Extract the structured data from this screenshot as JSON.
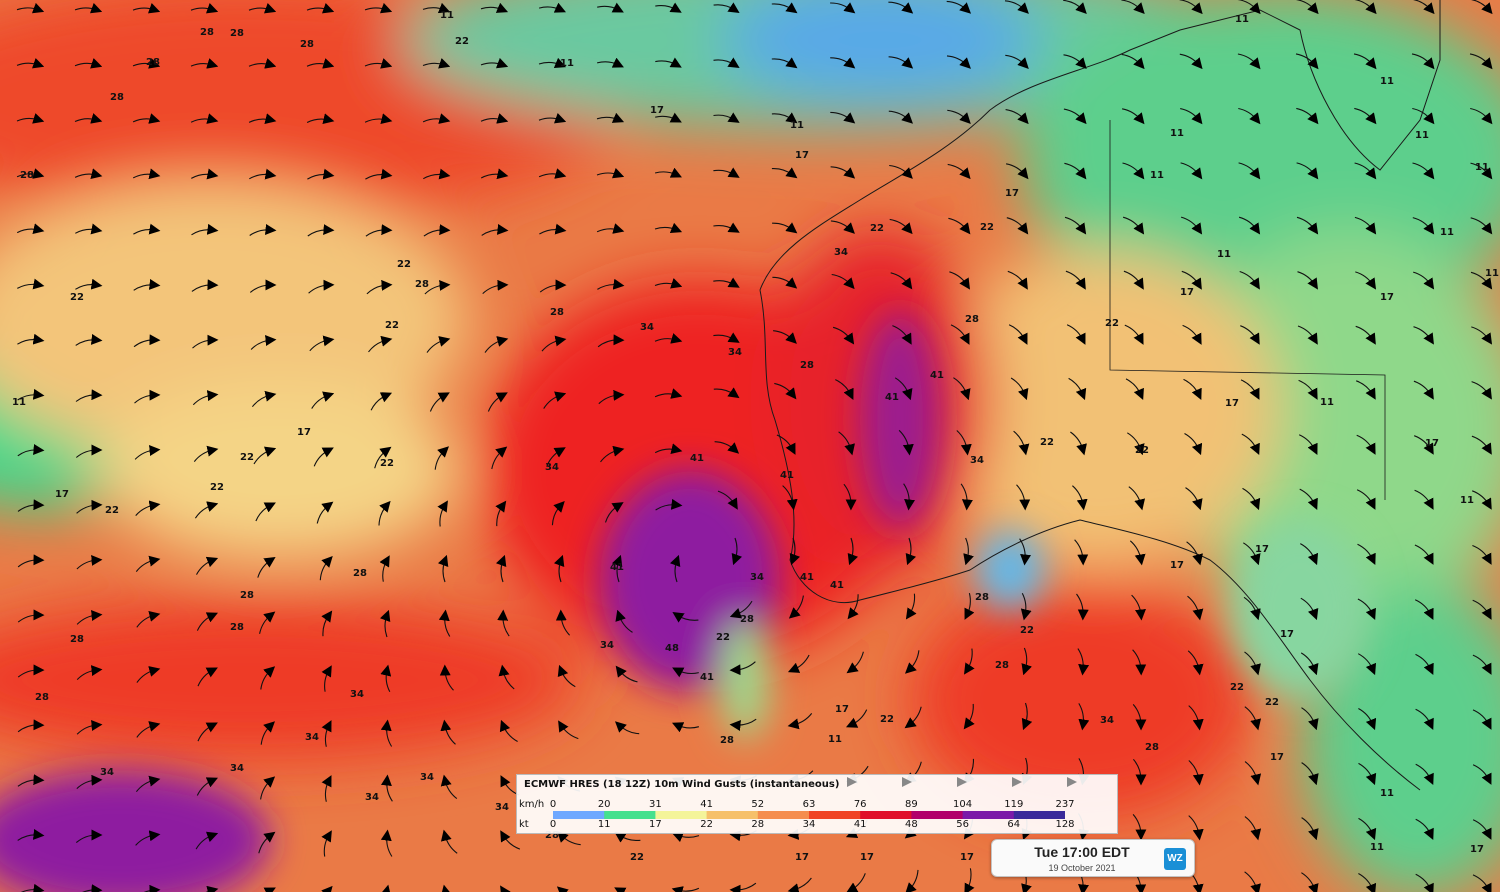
{
  "legend": {
    "title": "ECMWF HRES (18 12Z) 10m Wind Gusts (instantaneous)",
    "kmh_label": "km/h",
    "kt_label": "kt",
    "kmh_values": [
      "0",
      "20",
      "31",
      "41",
      "52",
      "63",
      "76",
      "89",
      "104",
      "119",
      "237"
    ],
    "kt_values": [
      "0",
      "11",
      "17",
      "22",
      "28",
      "34",
      "41",
      "48",
      "56",
      "64",
      "128"
    ],
    "colors": [
      "#6fa8ff",
      "#46e08e",
      "#f4f49a",
      "#f6c06a",
      "#f58d4e",
      "#f04424",
      "#e0102a",
      "#b2006a",
      "#7b1aa8",
      "#3a2a9a"
    ]
  },
  "timestamp": {
    "time": "Tue 17:00 EDT",
    "date": "19 October 2021",
    "logo": "WZ"
  },
  "map_contour_labels": [
    "11",
    "17",
    "22",
    "28",
    "34",
    "41",
    "48"
  ],
  "icons": {
    "wind_arrow": "triangle-arrowhead",
    "logo": "weatherzone-logo"
  }
}
